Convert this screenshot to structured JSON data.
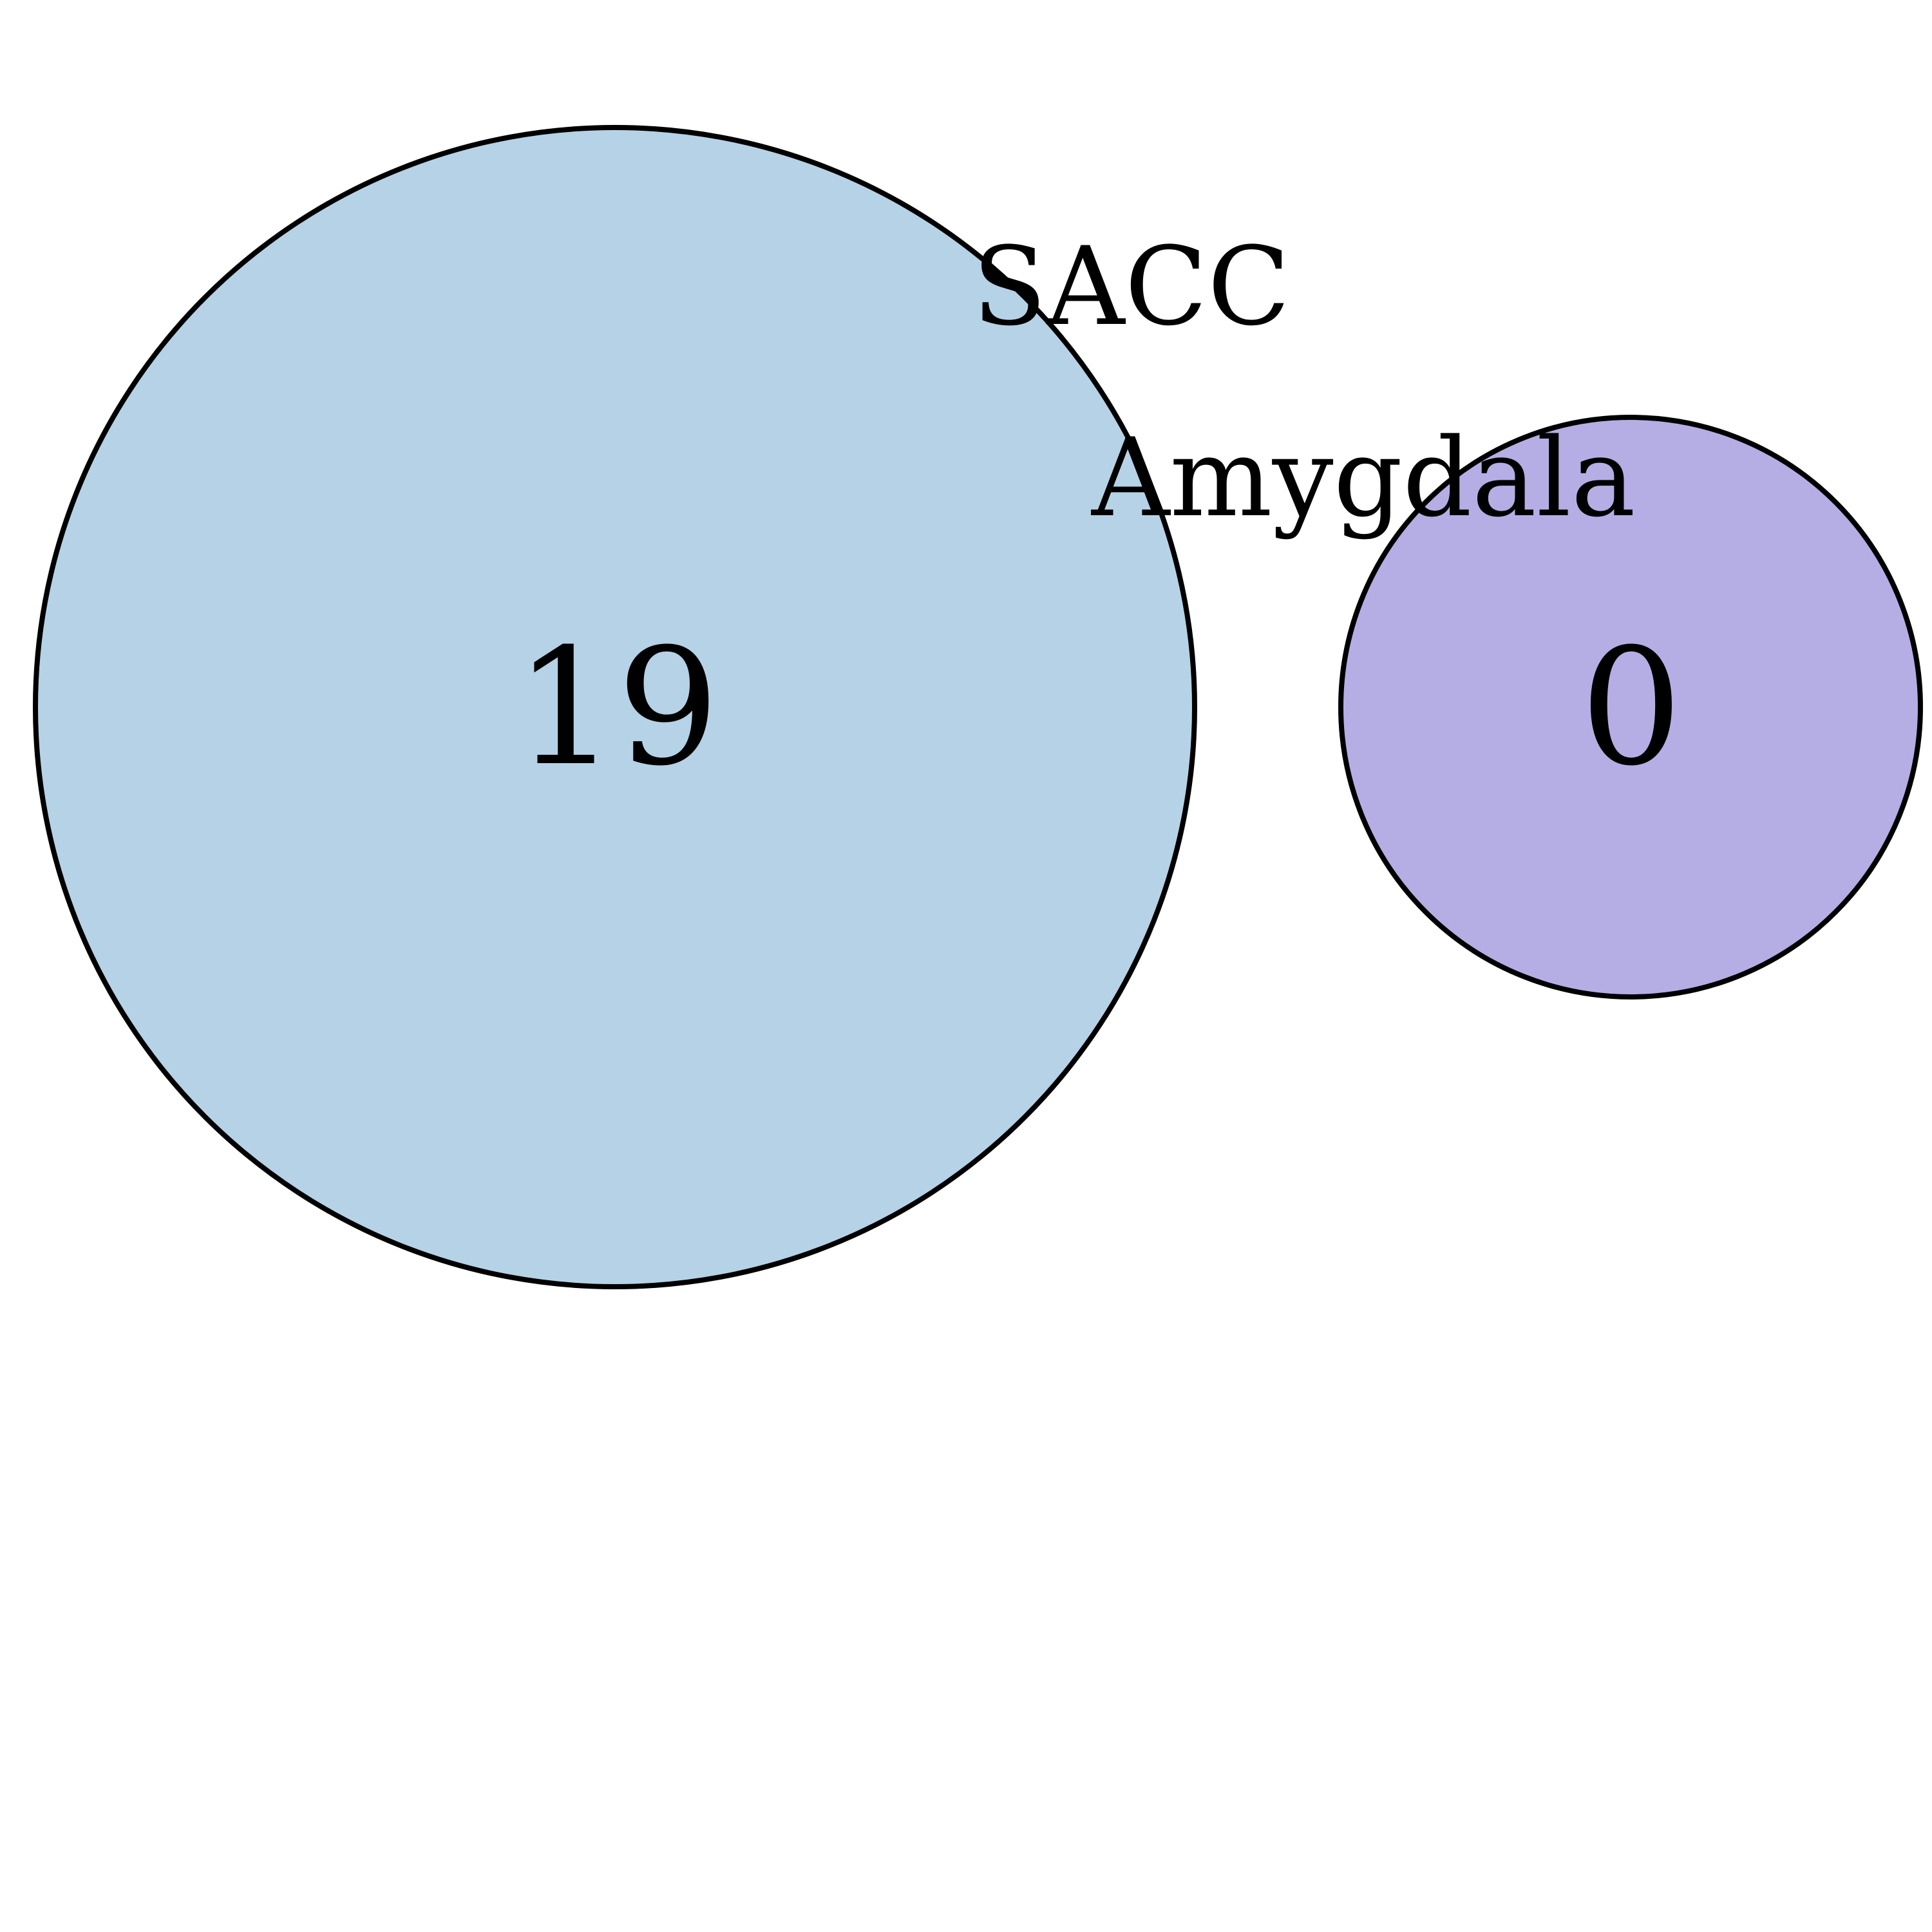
{
  "chart_data": {
    "type": "venn",
    "sets": [
      {
        "name": "SACC",
        "count": 19,
        "color": "#b6d2e6"
      },
      {
        "name": "Amygdala",
        "count": 0,
        "color": "#b5aee5"
      }
    ],
    "intersection": null,
    "outline_color": "#000000"
  }
}
